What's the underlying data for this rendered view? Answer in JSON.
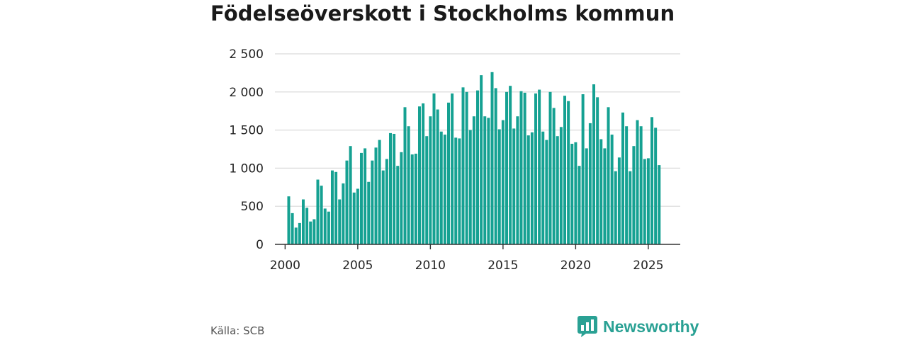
{
  "title": "Födelseöverskott i Stockholms kommun",
  "source": "Källa: SCB",
  "brand": {
    "name": "Newsworthy",
    "icon": "bar-chart-icon"
  },
  "colors": {
    "bar": "#15a192",
    "grid": "#d9d9d9",
    "axis": "#333333",
    "brand": "#2aa194"
  },
  "chart_data": {
    "type": "bar",
    "title": "Födelseöverskott i Stockholms kommun",
    "xlabel": "",
    "ylabel": "",
    "x_start": 2000.25,
    "x_step": 0.25,
    "xlim": [
      1999.3,
      2027.2
    ],
    "ylim": [
      0,
      2500
    ],
    "y_ticks": [
      0,
      500,
      1000,
      1500,
      2000,
      2500
    ],
    "y_tick_labels": [
      "0",
      "500",
      "1 000",
      "1 500",
      "2 000",
      "2 500"
    ],
    "x_ticks": [
      2000,
      2005,
      2010,
      2015,
      2020,
      2025
    ],
    "x_tick_labels": [
      "2000",
      "2005",
      "2010",
      "2015",
      "2020",
      "2025"
    ],
    "grid": true,
    "values": [
      630,
      410,
      220,
      280,
      590,
      480,
      300,
      330,
      850,
      770,
      470,
      430,
      970,
      950,
      590,
      800,
      1100,
      1290,
      680,
      730,
      1200,
      1260,
      820,
      1100,
      1270,
      1370,
      970,
      1120,
      1460,
      1450,
      1030,
      1210,
      1800,
      1550,
      1180,
      1190,
      1810,
      1850,
      1420,
      1680,
      1980,
      1770,
      1480,
      1440,
      1860,
      1980,
      1400,
      1390,
      2060,
      2000,
      1500,
      1680,
      2020,
      2220,
      1680,
      1660,
      2260,
      2050,
      1510,
      1630,
      2000,
      2080,
      1520,
      1680,
      2010,
      1990,
      1430,
      1470,
      1980,
      2030,
      1480,
      1370,
      2000,
      1790,
      1420,
      1540,
      1950,
      1880,
      1320,
      1340,
      1030,
      1970,
      1260,
      1590,
      2100,
      1930,
      1380,
      1260,
      1800,
      1440,
      960,
      1140,
      1730,
      1550,
      960,
      1290,
      1630,
      1550,
      1120,
      1130,
      1670,
      1530,
      1040
    ]
  }
}
